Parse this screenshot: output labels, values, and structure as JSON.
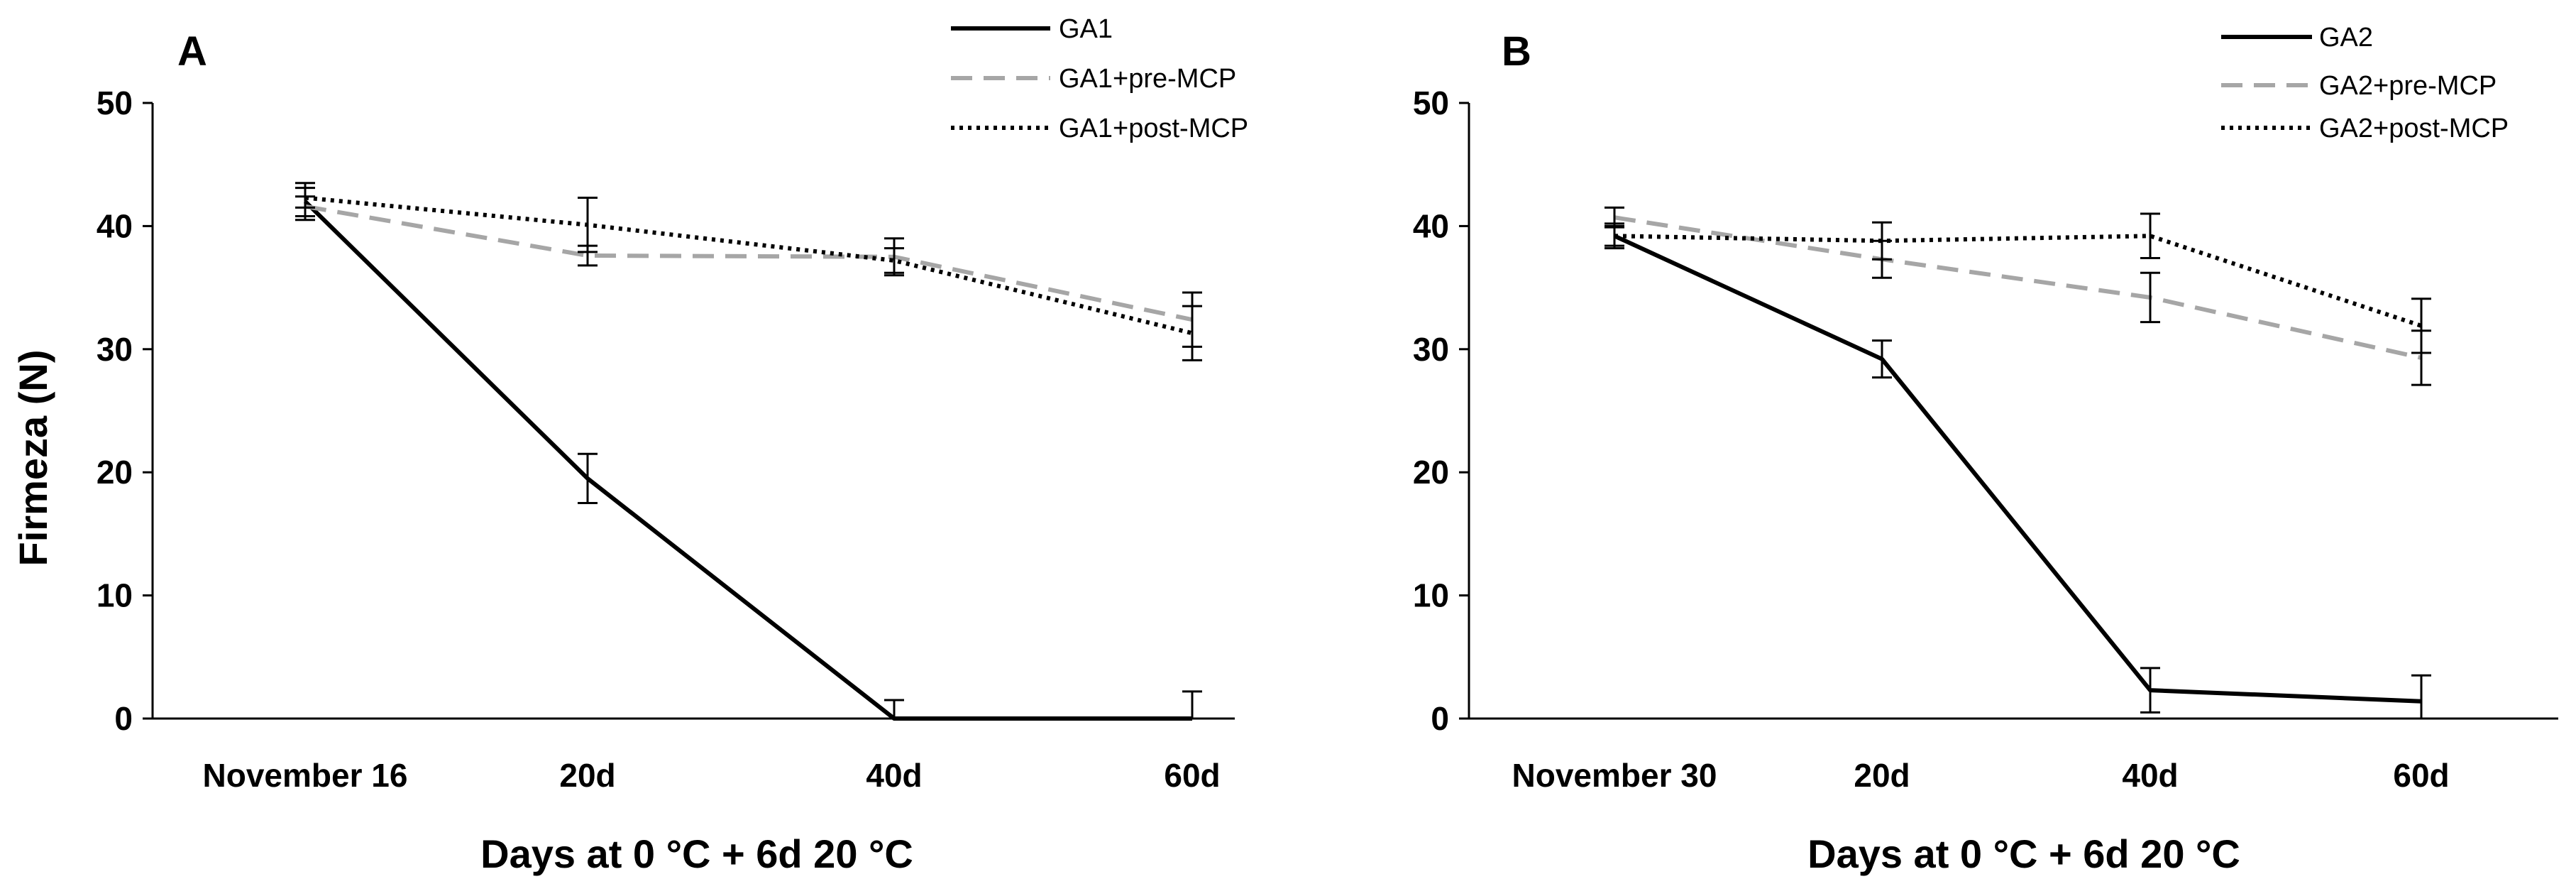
{
  "chart_data": [
    {
      "type": "line",
      "panel_label": "A",
      "ylabel": "Firmeza (N)",
      "xlabel": "Days at 0 °C + 6d 20 °C",
      "ylim": [
        0,
        50
      ],
      "yticks": [
        0,
        10,
        20,
        30,
        40,
        50
      ],
      "categories": [
        "November 16",
        "20d",
        "40d",
        "60d"
      ],
      "legend_position": "top-right",
      "series": [
        {
          "name": "GA1",
          "style": "solid",
          "color": "#000000",
          "values": [
            42.0,
            19.5,
            0.0,
            0.0
          ],
          "errors": [
            1.5,
            2.0,
            1.5,
            2.2
          ]
        },
        {
          "name": "GA1+pre-MCP",
          "style": "dashed",
          "color": "#a6a6a6",
          "values": [
            41.6,
            37.6,
            37.5,
            32.4
          ],
          "errors": [
            0.8,
            0.8,
            1.5,
            2.2
          ]
        },
        {
          "name": "GA1+post-MCP",
          "style": "dotted",
          "color": "#000000",
          "values": [
            42.3,
            40.1,
            37.2,
            31.3
          ],
          "errors": [
            0.8,
            2.2,
            1.0,
            2.2
          ]
        }
      ]
    },
    {
      "type": "line",
      "panel_label": "B",
      "ylabel": "",
      "xlabel": "Days at 0 °C + 6d 20 °C",
      "ylim": [
        0,
        50
      ],
      "yticks": [
        0,
        10,
        20,
        30,
        40,
        50
      ],
      "categories": [
        "November 30",
        "20d",
        "40d",
        "60d"
      ],
      "legend_position": "top-right",
      "series": [
        {
          "name": "GA2",
          "style": "solid",
          "color": "#000000",
          "values": [
            39.2,
            29.2,
            2.3,
            1.4
          ],
          "errors": [
            1.0,
            1.5,
            1.8,
            2.1
          ]
        },
        {
          "name": "GA2+pre-MCP",
          "style": "dashed",
          "color": "#a6a6a6",
          "values": [
            40.7,
            37.3,
            34.2,
            29.3
          ],
          "errors": [
            0.8,
            1.5,
            2.0,
            2.2
          ]
        },
        {
          "name": "GA2+post-MCP",
          "style": "dotted",
          "color": "#000000",
          "values": [
            39.2,
            38.8,
            39.2,
            31.9
          ],
          "errors": [
            0.8,
            1.5,
            1.8,
            2.2
          ]
        }
      ]
    }
  ]
}
